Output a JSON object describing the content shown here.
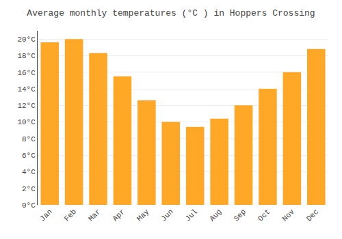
{
  "chart_data": {
    "type": "bar",
    "title": "Average monthly temperatures (°C ) in Hoppers Crossing",
    "categories": [
      "Jan",
      "Feb",
      "Mar",
      "Apr",
      "May",
      "Jun",
      "Jul",
      "Aug",
      "Sep",
      "Oct",
      "Nov",
      "Dec"
    ],
    "values": [
      19.6,
      20.0,
      18.3,
      15.5,
      12.6,
      10.0,
      9.4,
      10.4,
      12.0,
      14.0,
      16.0,
      18.8
    ],
    "color": "#FFA726",
    "ylim": [
      0,
      21
    ],
    "yticks": [
      {
        "value": 0,
        "label": "0°C"
      },
      {
        "value": 2,
        "label": "2°C"
      },
      {
        "value": 4,
        "label": "4°C"
      },
      {
        "value": 6,
        "label": "6°C"
      },
      {
        "value": 8,
        "label": "8°C"
      },
      {
        "value": 10,
        "label": "10°C"
      },
      {
        "value": 12,
        "label": "12°C"
      },
      {
        "value": 14,
        "label": "14°C"
      },
      {
        "value": 16,
        "label": "16°C"
      },
      {
        "value": 18,
        "label": "18°C"
      },
      {
        "value": 20,
        "label": "20°C"
      }
    ],
    "grid": true
  }
}
